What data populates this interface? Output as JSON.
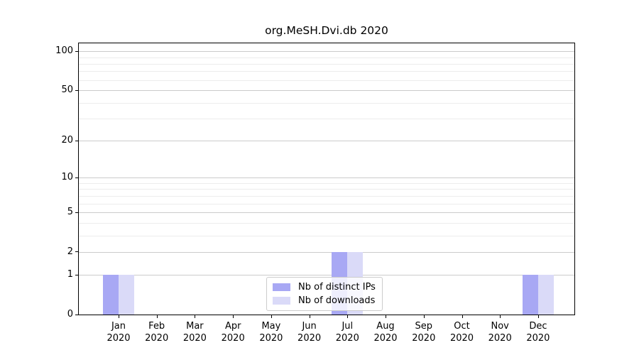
{
  "chart_data": {
    "type": "bar",
    "title": "org.MeSH.Dvi.db 2020",
    "categories": [
      "Jan 2020",
      "Feb 2020",
      "Mar 2020",
      "Apr 2020",
      "May 2020",
      "Jun 2020",
      "Jul 2020",
      "Aug 2020",
      "Sep 2020",
      "Oct 2020",
      "Nov 2020",
      "Dec 2020"
    ],
    "series": [
      {
        "name": "Nb of distinct IPs",
        "color": "#a8a8f4",
        "values": [
          1,
          0,
          0,
          0,
          0,
          0,
          2,
          0,
          0,
          0,
          0,
          1
        ]
      },
      {
        "name": "Nb of downloads",
        "color": "#dadaf8",
        "values": [
          1,
          0,
          0,
          0,
          0,
          0,
          2,
          0,
          0,
          0,
          0,
          1
        ]
      }
    ],
    "xlabel": "",
    "ylabel": "",
    "y_ticks": [
      0,
      1,
      2,
      5,
      10,
      20,
      50,
      100
    ],
    "y_minor_gridlines": [
      3,
      4,
      6,
      7,
      8,
      9,
      30,
      40,
      60,
      70,
      80,
      90
    ],
    "scale": "log1p",
    "ylim": [
      0,
      115
    ],
    "grid": true,
    "legend_position": "lower center"
  },
  "colors": {
    "bar_distinct_ips": "#a8a8f4",
    "bar_downloads": "#dadaf8",
    "major_grid": "#cbcbcb",
    "minor_grid": "#ececec",
    "axis": "#000000",
    "legend_border": "#cccccc",
    "background": "#ffffff"
  }
}
